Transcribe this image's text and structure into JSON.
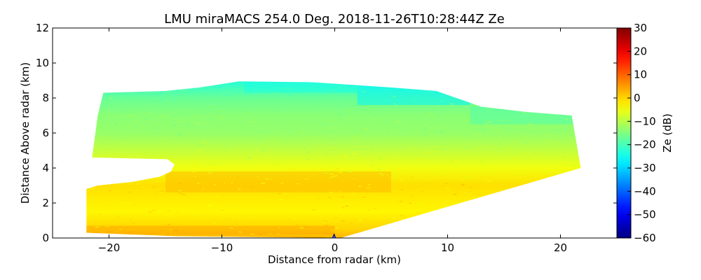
{
  "chart_data": {
    "type": "heatmap",
    "title": "LMU miraMACS 254.0 Deg. 2018-11-26T10:28:44Z  Ze",
    "xlabel": "Distance from radar (km)",
    "ylabel": "Distance Above radar  (km)",
    "xlim": [
      -25,
      25
    ],
    "ylim": [
      0,
      12
    ],
    "x_ticks": [
      -20,
      -10,
      0,
      10,
      20
    ],
    "y_ticks": [
      0,
      2,
      4,
      6,
      8,
      10,
      12
    ],
    "x_tick_labels": [
      "−20",
      "−10",
      "0",
      "10",
      "20"
    ],
    "y_tick_labels": [
      "0",
      "2",
      "4",
      "6",
      "8",
      "10",
      "12"
    ],
    "colorbar": {
      "label": "Ze (dB)",
      "range": [
        -60,
        30
      ],
      "ticks": [
        30,
        20,
        10,
        0,
        -10,
        -20,
        -30,
        -40,
        -50,
        -60
      ],
      "tick_labels": [
        "30",
        "20",
        "10",
        "0",
        "−10",
        "−20",
        "−30",
        "−40",
        "−50",
        "−60"
      ],
      "colormap": "jet"
    },
    "echo_region_outline_km": [
      [
        -22.0,
        0.3
      ],
      [
        -22.0,
        2.8
      ],
      [
        -21.0,
        3.0
      ],
      [
        -18.0,
        3.2
      ],
      [
        -15.5,
        3.5
      ],
      [
        -14.5,
        3.8
      ],
      [
        -14.2,
        4.2
      ],
      [
        -14.8,
        4.5
      ],
      [
        -21.5,
        4.6
      ],
      [
        -21.0,
        7.0
      ],
      [
        -20.5,
        8.3
      ],
      [
        -15.0,
        8.4
      ],
      [
        -12.0,
        8.6
      ],
      [
        -8.5,
        8.95
      ],
      [
        -2.0,
        8.9
      ],
      [
        5.0,
        8.6
      ],
      [
        9.0,
        8.4
      ],
      [
        13.0,
        7.5
      ],
      [
        17.0,
        7.2
      ],
      [
        21.0,
        7.0
      ],
      [
        21.8,
        4.0
      ],
      [
        0.5,
        0.0
      ],
      [
        -14.0,
        0.1
      ]
    ],
    "echo_layers": [
      {
        "zone": "upper cloud top 8-9 km",
        "ze_db": -22
      },
      {
        "zone": "mid levels 5-8 km",
        "ze_db": -13
      },
      {
        "zone": "layer 2-5 km",
        "ze_db": -4
      },
      {
        "zone": "brightband ~3 km near -8 km",
        "ze_db": 2
      },
      {
        "zone": "near surface 0-0.5 km",
        "ze_db": 4
      },
      {
        "zone": "cloud top east of 8 km",
        "ze_db": -27
      }
    ]
  }
}
